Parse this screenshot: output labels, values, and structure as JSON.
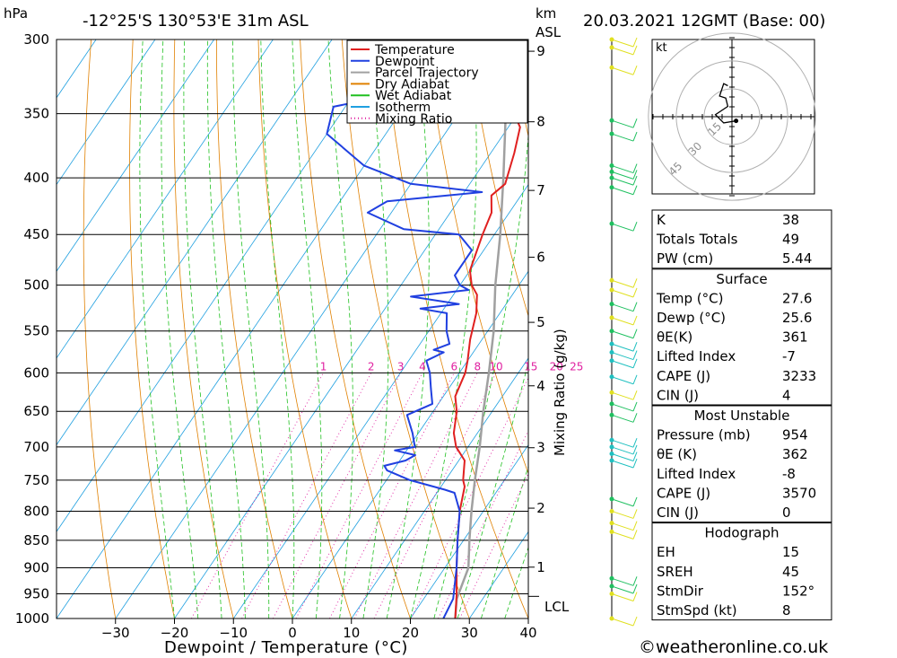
{
  "header": {
    "unit_hpa": "hPa",
    "location": "-12°25'S  130°53'E  31m  ASL",
    "unit_km": "km",
    "unit_asl": "ASL",
    "datetime": "20.03.2021  12GMT  (Base: 00)"
  },
  "footer": {
    "credit": "©weatheronline.co.uk"
  },
  "chart_data": {
    "type": "line",
    "xlabel": "Dewpoint / Temperature (°C)",
    "ylabel_left": "hPa",
    "ylabel_right": "Mixing Ratio (g/kg)",
    "xlim": [
      -40,
      40
    ],
    "xticks": [
      -30,
      -20,
      -10,
      0,
      10,
      20,
      30,
      40
    ],
    "pressure_levels": [
      300,
      350,
      400,
      450,
      500,
      550,
      600,
      650,
      700,
      750,
      800,
      850,
      900,
      950,
      1000
    ],
    "km_ticks": [
      1,
      2,
      3,
      4,
      5,
      6,
      7,
      8,
      9
    ],
    "lcl_label": "LCL",
    "mixing_ratio_labels": [
      "1",
      "2",
      "3",
      "4",
      "6",
      "8",
      "10",
      "15",
      "20",
      "25"
    ],
    "legend": [
      {
        "name": "Temperature",
        "color": "#e02020",
        "style": "solid"
      },
      {
        "name": "Dewpoint",
        "color": "#2040e0",
        "style": "solid"
      },
      {
        "name": "Parcel Trajectory",
        "color": "#a0a0a0",
        "style": "solid"
      },
      {
        "name": "Dry Adiabat",
        "color": "#e08000",
        "style": "solid"
      },
      {
        "name": "Wet Adiabat",
        "color": "#20c020",
        "style": "solid"
      },
      {
        "name": "Isotherm",
        "color": "#20a0e0",
        "style": "solid"
      },
      {
        "name": "Mixing Ratio",
        "color": "#e020a0",
        "style": "dotted"
      }
    ],
    "series": [
      {
        "name": "Temperature",
        "points": [
          [
            27.6,
            1000
          ],
          [
            25,
            950
          ],
          [
            22,
            900
          ],
          [
            19,
            850
          ],
          [
            16,
            800
          ],
          [
            14,
            760
          ],
          [
            13,
            750
          ],
          [
            11,
            720
          ],
          [
            8,
            700
          ],
          [
            6,
            680
          ],
          [
            4,
            650
          ],
          [
            2,
            630
          ],
          [
            1,
            600
          ],
          [
            0,
            585
          ],
          [
            -2,
            560
          ],
          [
            -4,
            530
          ],
          [
            -6,
            510
          ],
          [
            -8,
            500
          ],
          [
            -10,
            485
          ],
          [
            -12,
            450
          ],
          [
            -13,
            430
          ],
          [
            -15,
            415
          ],
          [
            -14,
            405
          ],
          [
            -16,
            380
          ],
          [
            -18,
            360
          ],
          [
            -26,
            330
          ],
          [
            -30,
            300
          ]
        ]
      },
      {
        "name": "Dewpoint",
        "points": [
          [
            25.6,
            1000
          ],
          [
            25,
            960
          ],
          [
            22,
            900
          ],
          [
            19,
            850
          ],
          [
            16,
            800
          ],
          [
            13,
            770
          ],
          [
            11,
            765
          ],
          [
            4,
            750
          ],
          [
            -1,
            735
          ],
          [
            -2,
            728
          ],
          [
            1,
            720
          ],
          [
            2,
            712
          ],
          [
            -2,
            705
          ],
          [
            1,
            700
          ],
          [
            0,
            690
          ],
          [
            -1,
            680
          ],
          [
            -4,
            655
          ],
          [
            -1,
            640
          ],
          [
            -3,
            620
          ],
          [
            -5,
            600
          ],
          [
            -7,
            585
          ],
          [
            -5,
            575
          ],
          [
            -7,
            572
          ],
          [
            -5,
            565
          ],
          [
            -7,
            550
          ],
          [
            -9,
            530
          ],
          [
            -14,
            525
          ],
          [
            -8,
            520
          ],
          [
            -17,
            512
          ],
          [
            -8,
            505
          ],
          [
            -10,
            500
          ],
          [
            -12,
            490
          ],
          [
            -12,
            465
          ],
          [
            -16,
            450
          ],
          [
            -26,
            445
          ],
          [
            -34,
            430
          ],
          [
            -32,
            420
          ],
          [
            -17,
            412
          ],
          [
            -30,
            405
          ],
          [
            -40,
            390
          ],
          [
            -50,
            365
          ],
          [
            -52,
            345
          ],
          [
            -42,
            335
          ],
          [
            -32,
            325
          ],
          [
            -38,
            312
          ],
          [
            -34,
            305
          ],
          [
            -38,
            300
          ]
        ]
      },
      {
        "name": "Parcel Trajectory",
        "points": [
          [
            27.6,
            1000
          ],
          [
            25.6,
            960
          ],
          [
            24,
            900
          ],
          [
            21,
            850
          ],
          [
            18,
            800
          ],
          [
            15,
            750
          ],
          [
            12,
            700
          ],
          [
            8.5,
            650
          ],
          [
            5,
            600
          ],
          [
            1,
            550
          ],
          [
            -4,
            500
          ],
          [
            -9,
            450
          ],
          [
            -15,
            400
          ],
          [
            -22,
            350
          ],
          [
            -31,
            300
          ]
        ]
      }
    ],
    "hodograph": {
      "unit_label": "kt",
      "ring_labels": [
        "15",
        "30",
        "45"
      ],
      "ring_speeds": [
        15,
        30,
        45
      ],
      "points": [
        [
          2,
          -2
        ],
        [
          -4,
          -3
        ],
        [
          -8,
          1
        ],
        [
          -2,
          5
        ],
        [
          -3,
          9
        ],
        [
          -6,
          10
        ],
        [
          -4,
          16
        ],
        [
          -2,
          15
        ]
      ]
    },
    "wind_barb_colors": [
      "#e0e020",
      "#20c060",
      "#20c0c0"
    ]
  },
  "indices": {
    "basic": [
      {
        "label": "K",
        "value": "38"
      },
      {
        "label": "Totals Totals",
        "value": "49"
      },
      {
        "label": "PW (cm)",
        "value": "5.44"
      }
    ],
    "surface_title": "Surface",
    "surface": [
      {
        "label": "Temp (°C)",
        "value": "27.6"
      },
      {
        "label": "Dewp (°C)",
        "value": "25.6"
      },
      {
        "label": "θE(K)",
        "value": "361"
      },
      {
        "label": "Lifted Index",
        "value": "-7"
      },
      {
        "label": "CAPE (J)",
        "value": "3233"
      },
      {
        "label": "CIN (J)",
        "value": "4"
      }
    ],
    "mu_title": "Most Unstable",
    "mu": [
      {
        "label": "Pressure (mb)",
        "value": "954"
      },
      {
        "label": "θE (K)",
        "value": "362"
      },
      {
        "label": "Lifted Index",
        "value": "-8"
      },
      {
        "label": "CAPE (J)",
        "value": "3570"
      },
      {
        "label": "CIN (J)",
        "value": "0"
      }
    ],
    "hodo_title": "Hodograph",
    "hodo": [
      {
        "label": "EH",
        "value": "15"
      },
      {
        "label": "SREH",
        "value": "45"
      },
      {
        "label": "StmDir",
        "value": "152°"
      },
      {
        "label": "StmSpd (kt)",
        "value": "8"
      }
    ]
  }
}
